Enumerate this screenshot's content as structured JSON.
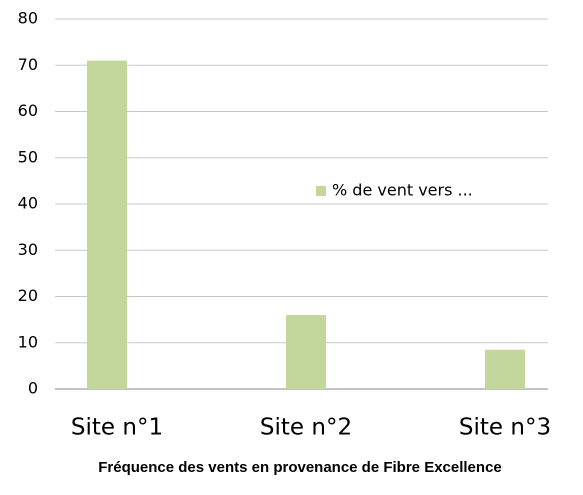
{
  "chart_data": {
    "type": "bar",
    "title": "Fréquence des vents en provenance de Fibre Excellence",
    "categories": [
      "Site n°1",
      "Site n°2",
      "Site n°3"
    ],
    "series": [
      {
        "name": "% de vent vers ...",
        "color": "#c3d69b",
        "values": [
          71,
          16,
          8.5
        ]
      }
    ],
    "ylim": [
      0,
      80
    ],
    "yticks": [
      0,
      10,
      20,
      30,
      40,
      50,
      60,
      70,
      80
    ],
    "grid": true,
    "legend": "right"
  }
}
